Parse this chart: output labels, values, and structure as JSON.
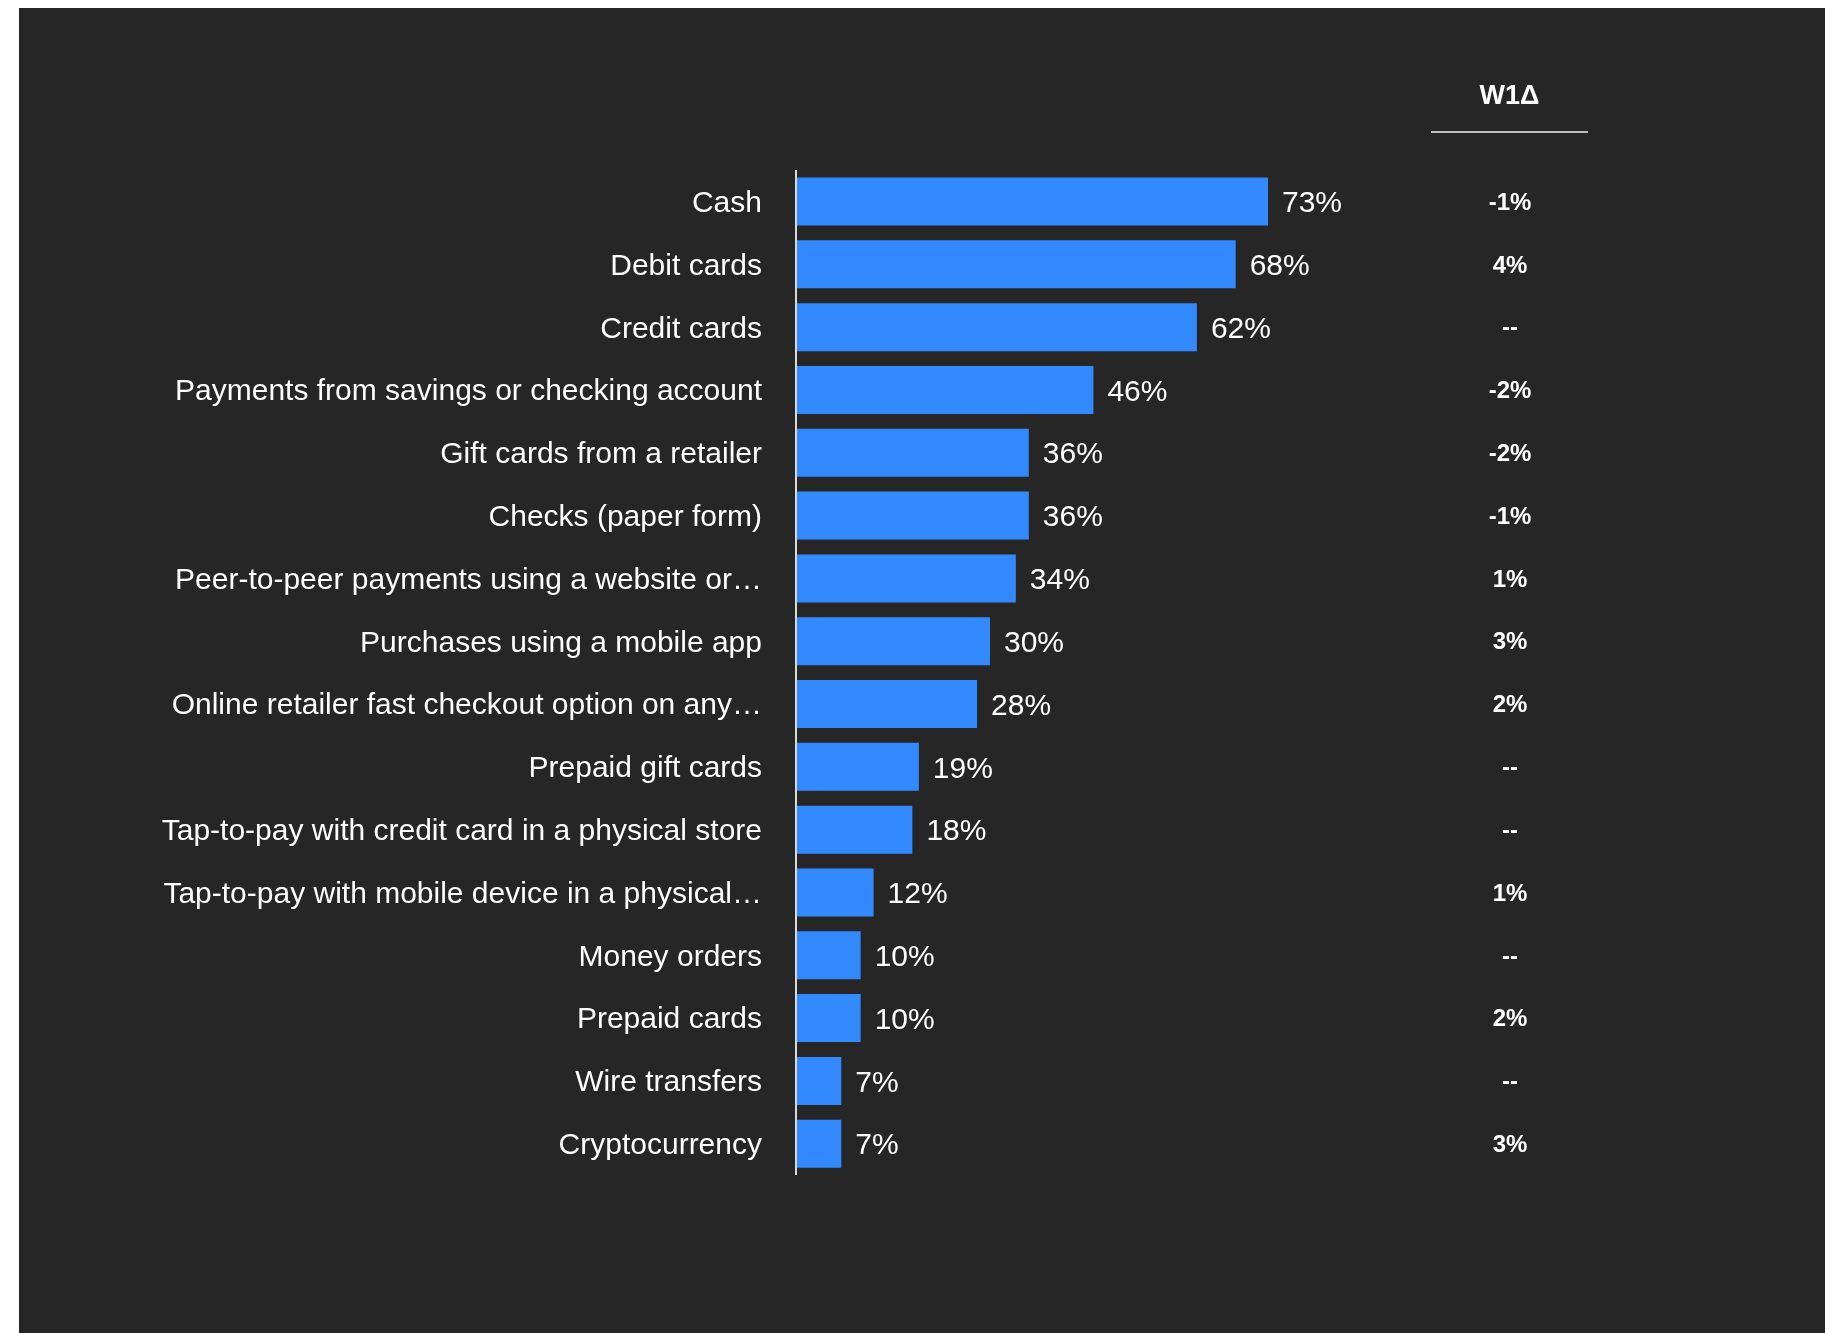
{
  "chart_data": {
    "type": "bar",
    "orientation": "horizontal",
    "categories": [
      "Cash",
      "Debit cards",
      "Credit cards",
      "Payments from savings or checking account",
      "Gift cards from a retailer",
      "Checks (paper form)",
      "Peer-to-peer payments using a website or…",
      "Purchases using a mobile app",
      "Online retailer fast checkout option on any…",
      "Prepaid gift cards",
      "Tap-to-pay with credit card in a physical store",
      "Tap-to-pay with mobile device in a physical…",
      "Money orders",
      "Prepaid cards",
      "Wire transfers",
      "Cryptocurrency"
    ],
    "values": [
      73,
      68,
      62,
      46,
      36,
      36,
      34,
      30,
      28,
      19,
      18,
      12,
      10,
      10,
      7,
      7
    ],
    "value_labels": [
      "73%",
      "68%",
      "62%",
      "46%",
      "36%",
      "36%",
      "34%",
      "30%",
      "28%",
      "19%",
      "18%",
      "12%",
      "10%",
      "10%",
      "7%",
      "7%"
    ],
    "color": "#338aff",
    "annotations": [
      "W1Δ",
      "-1%",
      "4%",
      "--",
      "-2%",
      "-2%",
      "-1%",
      "1%",
      "3%",
      "2%",
      "--",
      "--",
      "1%",
      "--",
      "2%",
      "--",
      "3%"
    ]
  }
}
